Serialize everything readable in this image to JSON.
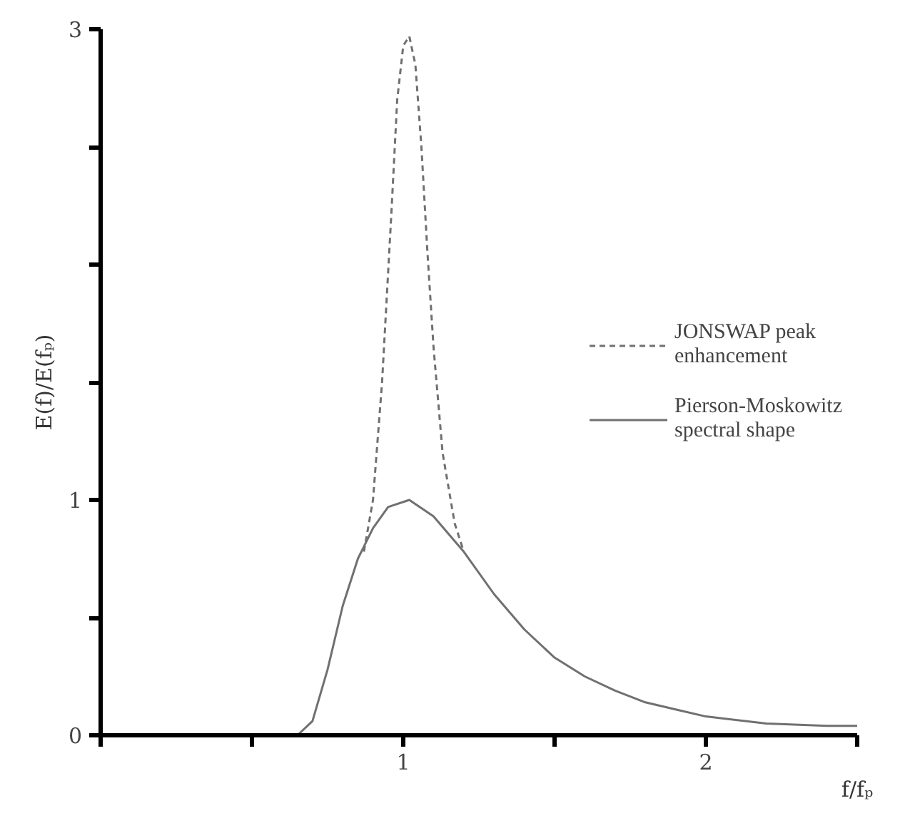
{
  "chart_data": {
    "type": "line",
    "xlabel": "f/fₚ",
    "ylabel": "E(f)/E(fₚ)",
    "xlim": [
      0,
      2.5
    ],
    "ylim": [
      0,
      3
    ],
    "xticks": [
      {
        "value": 0,
        "label": null
      },
      {
        "value": 0.5,
        "label": null
      },
      1,
      {
        "value": 1.5,
        "label": null
      },
      2,
      {
        "value": 2.5,
        "label": null
      }
    ],
    "yticks": [
      0,
      {
        "value": 0.5,
        "label": null
      },
      1,
      {
        "value": 1.5,
        "label": null
      },
      {
        "value": 2,
        "label": null
      },
      {
        "value": 2.5,
        "label": null
      },
      3
    ],
    "grid": false,
    "legend": "right",
    "series": [
      {
        "name": "JONSWAP peak\nenhancement",
        "color": "#707070",
        "line_style": "dashed",
        "x": [
          0.87,
          0.9,
          0.93,
          0.96,
          0.98,
          1.0,
          1.02,
          1.04,
          1.06,
          1.08,
          1.1,
          1.13,
          1.17,
          1.2
        ],
        "values": [
          0.78,
          1.0,
          1.5,
          2.2,
          2.7,
          2.93,
          2.97,
          2.85,
          2.5,
          2.05,
          1.65,
          1.2,
          0.9,
          0.78
        ]
      },
      {
        "name": "Pierson-Moskowitz\nspectral shape",
        "color": "#707070",
        "line_style": "solid",
        "x": [
          0.65,
          0.7,
          0.75,
          0.8,
          0.85,
          0.9,
          0.95,
          1.02,
          1.1,
          1.2,
          1.3,
          1.4,
          1.5,
          1.6,
          1.7,
          1.8,
          1.9,
          2.0,
          2.2,
          2.4,
          2.5
        ],
        "values": [
          0,
          0.06,
          0.28,
          0.55,
          0.75,
          0.88,
          0.97,
          1.0,
          0.93,
          0.78,
          0.6,
          0.45,
          0.33,
          0.25,
          0.19,
          0.14,
          0.11,
          0.08,
          0.05,
          0.04,
          0.04
        ]
      }
    ]
  }
}
